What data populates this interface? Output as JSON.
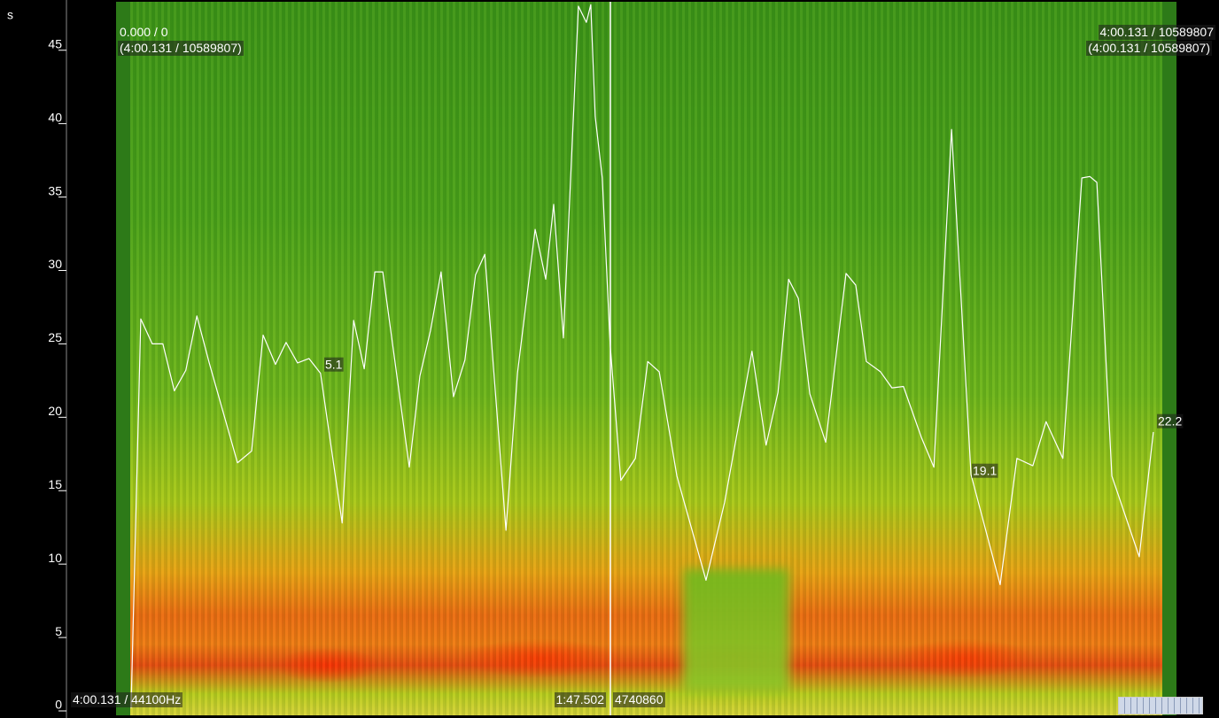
{
  "chart_data": {
    "type": "line",
    "y_unit": "s",
    "ylim": [
      0,
      48.3
    ],
    "yticks": [
      0,
      5,
      10,
      15,
      20,
      25,
      30,
      35,
      40,
      45
    ],
    "xlim": [
      0,
      240.131
    ],
    "x": [
      3.4,
      5.6,
      8.2,
      10.6,
      13.2,
      15.8,
      18.3,
      21.1,
      27.5,
      30.7,
      33.3,
      36.1,
      38.5,
      41.1,
      43.7,
      46.3,
      51.2,
      53.8,
      56.2,
      58.6,
      60.4,
      66.4,
      68.8,
      71.2,
      73.6,
      76.4,
      79.0,
      81.4,
      83.5,
      88.3,
      90.9,
      94.9,
      97.3,
      99.1,
      101.3,
      104.7,
      106.5,
      107.5,
      108.5,
      110.1,
      111.9,
      114.3,
      117.6,
      120.4,
      123.0,
      127.0,
      133.6,
      137.8,
      144.0,
      147.2,
      149.9,
      152.3,
      154.5,
      157.1,
      160.7,
      165.3,
      167.5,
      169.9,
      173.1,
      175.7,
      178.3,
      182.4,
      185.2,
      189.2,
      193.6,
      200.2,
      204.0,
      207.6,
      210.6,
      214.4,
      218.7,
      220.5,
      222.1,
      225.5,
      231.7,
      234.9
    ],
    "series": [
      {
        "color": "#ffffff",
        "values": [
          0.2,
          26.7,
          25.0,
          25.0,
          21.8,
          23.2,
          26.9,
          23.7,
          16.9,
          17.7,
          25.6,
          23.6,
          25.1,
          23.7,
          24.0,
          23.0,
          12.8,
          26.6,
          23.3,
          29.9,
          29.9,
          16.6,
          22.8,
          25.9,
          29.9,
          21.4,
          23.9,
          29.7,
          31.1,
          12.3,
          23.0,
          32.8,
          29.4,
          34.5,
          25.4,
          48.0,
          46.9,
          48.1,
          40.5,
          36.3,
          24.9,
          15.7,
          17.2,
          23.8,
          23.1,
          16.0,
          8.9,
          14.2,
          24.5,
          18.1,
          21.7,
          29.4,
          28.1,
          21.6,
          18.3,
          29.8,
          29.0,
          23.8,
          23.1,
          22.0,
          22.1,
          18.6,
          16.6,
          39.6,
          16.1,
          8.6,
          17.2,
          16.7,
          19.7,
          17.2,
          36.3,
          36.4,
          36.0,
          16.0,
          10.5,
          19.0
        ]
      }
    ],
    "annotations": [
      "5.1",
      "19.1",
      "22.2"
    ]
  },
  "overlay": {
    "top_left": [
      "0.000 / 0",
      "(4:00.131 / 10589807)"
    ],
    "top_right": [
      "4:00.131 / 10589807",
      "(4:00.131 / 10589807)"
    ],
    "bottom_left": "4:00.131 / 44100Hz",
    "playhead_time": "1:47.502",
    "playhead_frame": "4740860"
  }
}
